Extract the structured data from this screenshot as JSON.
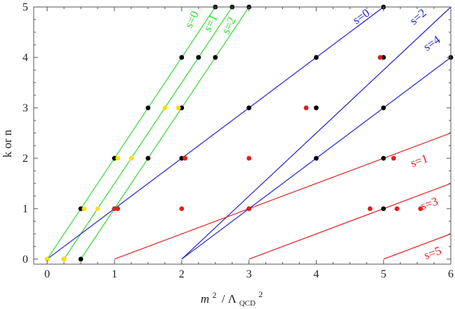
{
  "chart_data": {
    "type": "line",
    "x_tick_labels": [
      "0",
      "1",
      "2",
      "3",
      "4",
      "5",
      "6"
    ],
    "y_tick_labels": [
      "0",
      "1",
      "2",
      "3",
      "4",
      "5"
    ],
    "xlim": [
      -0.2,
      6
    ],
    "ylim": [
      -0.1,
      5
    ],
    "xlabel_base": "m",
    "xlabel_exp": "2",
    "xlabel_lambda": "/ Λ",
    "xlabel_sub": "QCD",
    "xlabel_exp2": "2",
    "ylabel": "k  or  n",
    "grid": false,
    "colors": {
      "green": "#33dd33",
      "blue": "#2222cc",
      "red": "#e02020",
      "black": "#000000",
      "yellow": "#ffe000",
      "axis": "#555555"
    },
    "series": [
      {
        "label": "s=0",
        "color": "green",
        "line": {
          "x0": 0,
          "slope": 2
        },
        "label_at": [
          2.2,
          4.72
        ],
        "label_rot": -63.4,
        "label_anchor": "middle"
      },
      {
        "label": "s=1",
        "color": "green",
        "line": {
          "x0": 0.25,
          "slope": 2
        },
        "label_at": [
          2.48,
          4.65
        ],
        "label_rot": -63.4,
        "label_anchor": "middle"
      },
      {
        "label": "s=2",
        "color": "green",
        "line": {
          "x0": 0.5,
          "slope": 2
        },
        "label_at": [
          2.75,
          4.6
        ],
        "label_rot": -63.4,
        "label_anchor": "middle"
      },
      {
        "label": "s=0",
        "color": "blue",
        "line": {
          "x0": 0,
          "slope": 1
        },
        "label_at": [
          4.7,
          4.75
        ],
        "label_rot": -34.7,
        "label_anchor": "middle"
      },
      {
        "label": "s=2",
        "color": "blue",
        "line": {
          "x0": 2,
          "slope": 1.25
        },
        "label_at": [
          5.55,
          4.75
        ],
        "label_rot": -40.8,
        "label_anchor": "middle"
      },
      {
        "label": "s=4",
        "color": "blue",
        "line": {
          "x0": 2,
          "slope": 1
        },
        "label_at": [
          5.75,
          4.22
        ],
        "label_rot": -34.7,
        "label_anchor": "middle"
      },
      {
        "label": "s=1",
        "color": "red",
        "line": {
          "x0": 1,
          "slope": 0.5
        },
        "label_at": [
          5.55,
          1.88
        ],
        "label_rot": -19.3,
        "label_anchor": "middle"
      },
      {
        "label": "s=3",
        "color": "red",
        "line": {
          "x0": 3,
          "slope": 0.5
        },
        "label_at": [
          5.7,
          1.03
        ],
        "label_rot": -19.3,
        "label_anchor": "middle"
      },
      {
        "label": "s=5",
        "color": "red",
        "line": {
          "x0": 5,
          "slope": 0.5
        },
        "label_at": [
          5.75,
          0.05
        ],
        "label_rot": -19.3,
        "label_anchor": "middle"
      }
    ],
    "points": {
      "black": [
        [
          0.25,
          0
        ],
        [
          0.5,
          0
        ],
        [
          0.5,
          1
        ],
        [
          1,
          1
        ],
        [
          1,
          2
        ],
        [
          1.5,
          2
        ],
        [
          1.5,
          3
        ],
        [
          2,
          3
        ],
        [
          2,
          4
        ],
        [
          2.25,
          4
        ],
        [
          2.5,
          4
        ],
        [
          2.5,
          5
        ],
        [
          2.75,
          5
        ],
        [
          3,
          5
        ],
        [
          2,
          2
        ],
        [
          3,
          3
        ],
        [
          4,
          4
        ],
        [
          5,
          5
        ],
        [
          3,
          1
        ],
        [
          4,
          2
        ],
        [
          5,
          3
        ],
        [
          6,
          4
        ],
        [
          4,
          3
        ],
        [
          5,
          4
        ],
        [
          5,
          2
        ],
        [
          5,
          1
        ]
      ],
      "yellow": [
        [
          0,
          0
        ],
        [
          0.25,
          0
        ],
        [
          0.55,
          1
        ],
        [
          0.75,
          1
        ],
        [
          1.05,
          2
        ],
        [
          1.25,
          2
        ],
        [
          1.75,
          3
        ],
        [
          1.95,
          3
        ]
      ],
      "red": [
        [
          1,
          1
        ],
        [
          1.05,
          1
        ],
        [
          2,
          1
        ],
        [
          2.05,
          2
        ],
        [
          3,
          2
        ],
        [
          3,
          1
        ],
        [
          3.85,
          3
        ],
        [
          4.95,
          4
        ],
        [
          4.8,
          1
        ],
        [
          5.15,
          2
        ],
        [
          5.2,
          1
        ],
        [
          5.55,
          1
        ]
      ]
    }
  }
}
